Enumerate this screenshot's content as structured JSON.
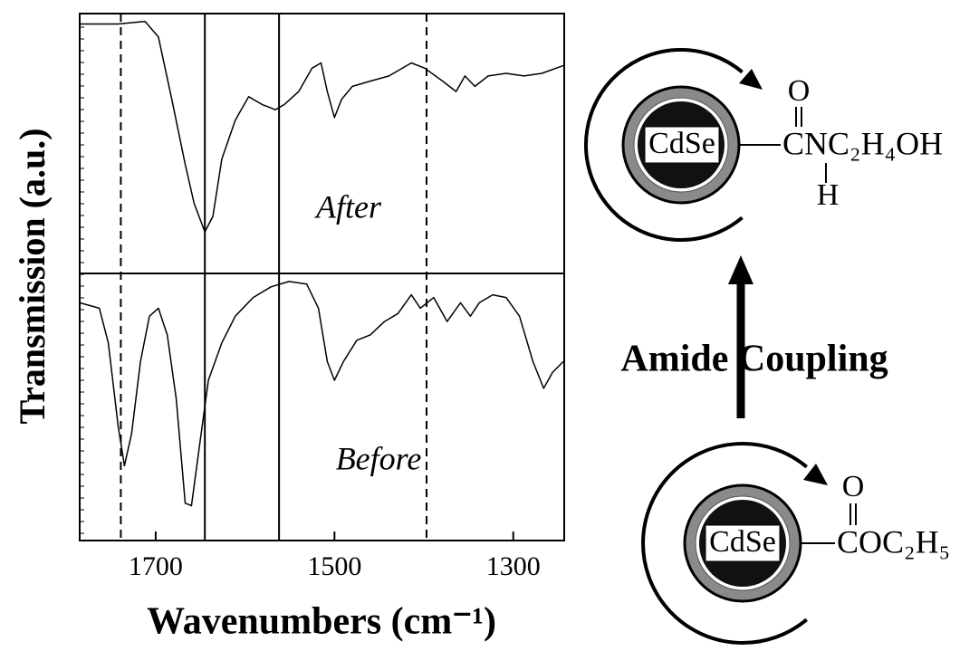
{
  "chart_data": {
    "type": "line",
    "xlabel": "Wavenumbers (cm⁻¹)",
    "ylabel": "Transmission (a.u.)",
    "xlim": [
      1785,
      1243
    ],
    "xticks": [
      1700,
      1500,
      1300
    ],
    "color": "#000000",
    "reference_lines": [
      {
        "x": 1739,
        "style": "dashed"
      },
      {
        "x": 1645,
        "style": "solid"
      },
      {
        "x": 1562,
        "style": "solid"
      },
      {
        "x": 1397,
        "style": "dashed"
      }
    ],
    "panels": [
      {
        "label": "After",
        "ylim": [
          0,
          100
        ],
        "x": [
          1785,
          1742,
          1712,
          1697,
          1682,
          1667,
          1657,
          1645,
          1636,
          1626,
          1611,
          1596,
          1581,
          1566,
          1556,
          1540,
          1525,
          1515,
          1508,
          1500,
          1492,
          1480,
          1460,
          1439,
          1414,
          1399,
          1379,
          1364,
          1354,
          1343,
          1328,
          1308,
          1288,
          1268,
          1244
        ],
        "values": [
          96,
          96,
          97,
          91,
          67,
          42,
          27,
          16,
          22,
          44,
          59,
          68,
          65,
          63,
          65,
          70,
          79,
          81,
          70,
          60,
          67,
          72,
          74,
          76,
          81,
          79,
          74,
          70,
          76,
          72,
          76,
          77,
          76,
          77,
          80
        ]
      },
      {
        "label": "Before",
        "ylim": [
          0,
          100
        ],
        "x": [
          1785,
          1763,
          1753,
          1742,
          1735,
          1727,
          1717,
          1707,
          1697,
          1687,
          1677,
          1667,
          1660,
          1652,
          1641,
          1626,
          1611,
          1591,
          1571,
          1551,
          1531,
          1518,
          1508,
          1500,
          1490,
          1475,
          1460,
          1444,
          1429,
          1414,
          1404,
          1389,
          1374,
          1359,
          1348,
          1338,
          1323,
          1308,
          1293,
          1278,
          1266,
          1256,
          1244
        ],
        "values": [
          89,
          87,
          74,
          43,
          28,
          40,
          67,
          84,
          87,
          77,
          53,
          14,
          13,
          33,
          60,
          74,
          84,
          91,
          95,
          97,
          96,
          87,
          67,
          60,
          67,
          75,
          77,
          82,
          85,
          92,
          87,
          91,
          82,
          89,
          84,
          89,
          92,
          91,
          84,
          67,
          57,
          63,
          67
        ]
      }
    ]
  },
  "diagram": {
    "top": {
      "core": "CdSe",
      "group_top": "O",
      "group": "CNC₂H₄OH",
      "group_bottom": "H"
    },
    "arrow_label": "Amide Coupling",
    "bottom": {
      "core": "CdSe",
      "group_top": "O",
      "group": "COC₂H₅"
    }
  }
}
